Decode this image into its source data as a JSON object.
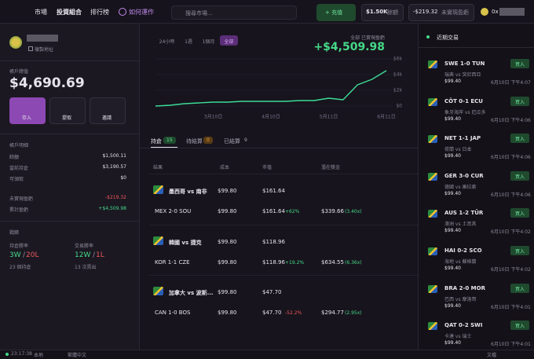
{
  "nav": {
    "items": [
      "市場",
      "投資組合",
      "排行榜",
      "如何運作"
    ],
    "search_placeholder": "搜尋市場...",
    "deposit": "+ 充值",
    "balance": "$1.50K",
    "balance_label": "餘額",
    "unrealized": "-$219.32",
    "unrealized_label": "未實現盈虧",
    "account": "0x"
  },
  "profile": {
    "copy": "複製地址",
    "total_label": "帳戶總值",
    "total": "$4,690.69",
    "actions": [
      "存入",
      "提取",
      "邀請"
    ]
  },
  "details": {
    "title": "帳戶明細",
    "rows": [
      [
        "餘額",
        "$1,500.11"
      ],
      [
        "當前持倉",
        "$3,190.57"
      ],
      [
        "可領取",
        "$0"
      ]
    ],
    "pnl_rows": [
      [
        "未實現盈虧",
        "-$219.32"
      ],
      [
        "累計盈虧",
        "+$4,509.98"
      ]
    ]
  },
  "record": {
    "title": "戰績",
    "separator": "/",
    "position_label": "持倉勝率",
    "position_w": "3W",
    "position_l": "20L",
    "position_count": "23 個持倉",
    "trade_label": "交易勝率",
    "trade_w": "12W",
    "trade_l": "1L",
    "trade_count": "13 次賣出"
  },
  "chart_data": {
    "type": "line",
    "ranges": [
      "24小時",
      "1週",
      "1個月",
      "全部"
    ],
    "title": "全部 已實現盈虧",
    "headline": "+$4,509.98",
    "color": "#3ddc97",
    "categories": [
      null,
      null,
      null,
      null,
      "3月10日",
      null,
      null,
      null,
      "4月10日",
      null,
      null,
      null,
      "5月11日",
      null,
      null,
      null,
      "6月11日"
    ],
    "values": [
      0,
      100,
      300,
      400,
      500,
      500,
      600,
      600,
      600,
      600,
      700,
      700,
      1000,
      800,
      2700,
      3400,
      4509.98
    ],
    "ylim": [
      0,
      6000
    ],
    "yticks": [
      {
        "value": 0,
        "label": "$0"
      },
      {
        "value": 2000,
        "label": "$2k"
      },
      {
        "value": 4000,
        "label": "$4k"
      },
      {
        "value": 6000,
        "label": "$6k"
      }
    ],
    "grid": true
  },
  "tabs": [
    {
      "label": "持倉",
      "count": 15
    },
    {
      "label": "待結算",
      "count": 0
    },
    {
      "label": "已結算",
      "count": 9
    }
  ],
  "table": {
    "headers": [
      "結果",
      "成本",
      "市值",
      "潛在獎金"
    ],
    "rows": [
      {
        "match": "墨西哥 vs 南非",
        "cost": "$99.80",
        "value": "$161.64",
        "outcome": "MEX 2-0 SOU",
        "cost2": "$99.80",
        "value2": "$161.64",
        "change": "+62%",
        "payout": "$339.66",
        "multiple": "(3.40x)"
      },
      {
        "match": "韓國 vs 捷克",
        "cost": "$99.80",
        "value": "$118.96",
        "outcome": "KOR 1-1 CZE",
        "cost2": "$99.80",
        "value2": "$118.96",
        "change": "+19.2%",
        "payout": "$634.55",
        "multiple": "(6.36x)"
      },
      {
        "match": "加拿大 vs 波斯...",
        "cost": "$99.80",
        "value": "$47.70",
        "outcome": "CAN 1-0 BOS",
        "cost2": "$99.80",
        "value2": "$47.70",
        "change": "-52.2%",
        "payout": "$294.77",
        "multiple": "(2.95x)"
      }
    ]
  },
  "trades": {
    "title": "近期交易",
    "items": [
      {
        "outcome": "SWE 1-0 TUN",
        "match": "瑞典 vs 突尼西亞",
        "price": "$99.40",
        "time": "6月10日 下午4:07",
        "action": "買入"
      },
      {
        "outcome": "CÔT 0-1 ECU",
        "match": "象牙海岸 vs 厄瓜多",
        "price": "$99.40",
        "time": "6月10日 下午4:06",
        "action": "買入"
      },
      {
        "outcome": "NET 1-1 JAP",
        "match": "荷蘭 vs 日本",
        "price": "$99.40",
        "time": "6月10日 下午4:06",
        "action": "買入"
      },
      {
        "outcome": "GER 3-0 CUR",
        "match": "德國 vs 庫拉索",
        "price": "$99.40",
        "time": "6月10日 下午4:06",
        "action": "買入"
      },
      {
        "outcome": "AUS 1-2 TÜR",
        "match": "澳洲 vs 土耳其",
        "price": "$99.40",
        "time": "6月10日 下午4:02",
        "action": "買入"
      },
      {
        "outcome": "HAI 0-2 SCO",
        "match": "海地 vs 蘇格蘭",
        "price": "$99.40",
        "time": "6月10日 下午4:02",
        "action": "買入"
      },
      {
        "outcome": "BRA 2-0 MOR",
        "match": "巴西 vs 摩洛哥",
        "price": "$99.40",
        "time": "6月10日 下午4:01",
        "action": "買入"
      },
      {
        "outcome": "QAT 0-2 SWI",
        "match": "卡達 vs 瑞士",
        "price": "$99.40",
        "time": "6月10日 下午4:01",
        "action": "買入"
      }
    ]
  },
  "footer": {
    "time": "23:17:38",
    "time_label": "本地",
    "language": "繁體中文",
    "docs": "文檔"
  }
}
